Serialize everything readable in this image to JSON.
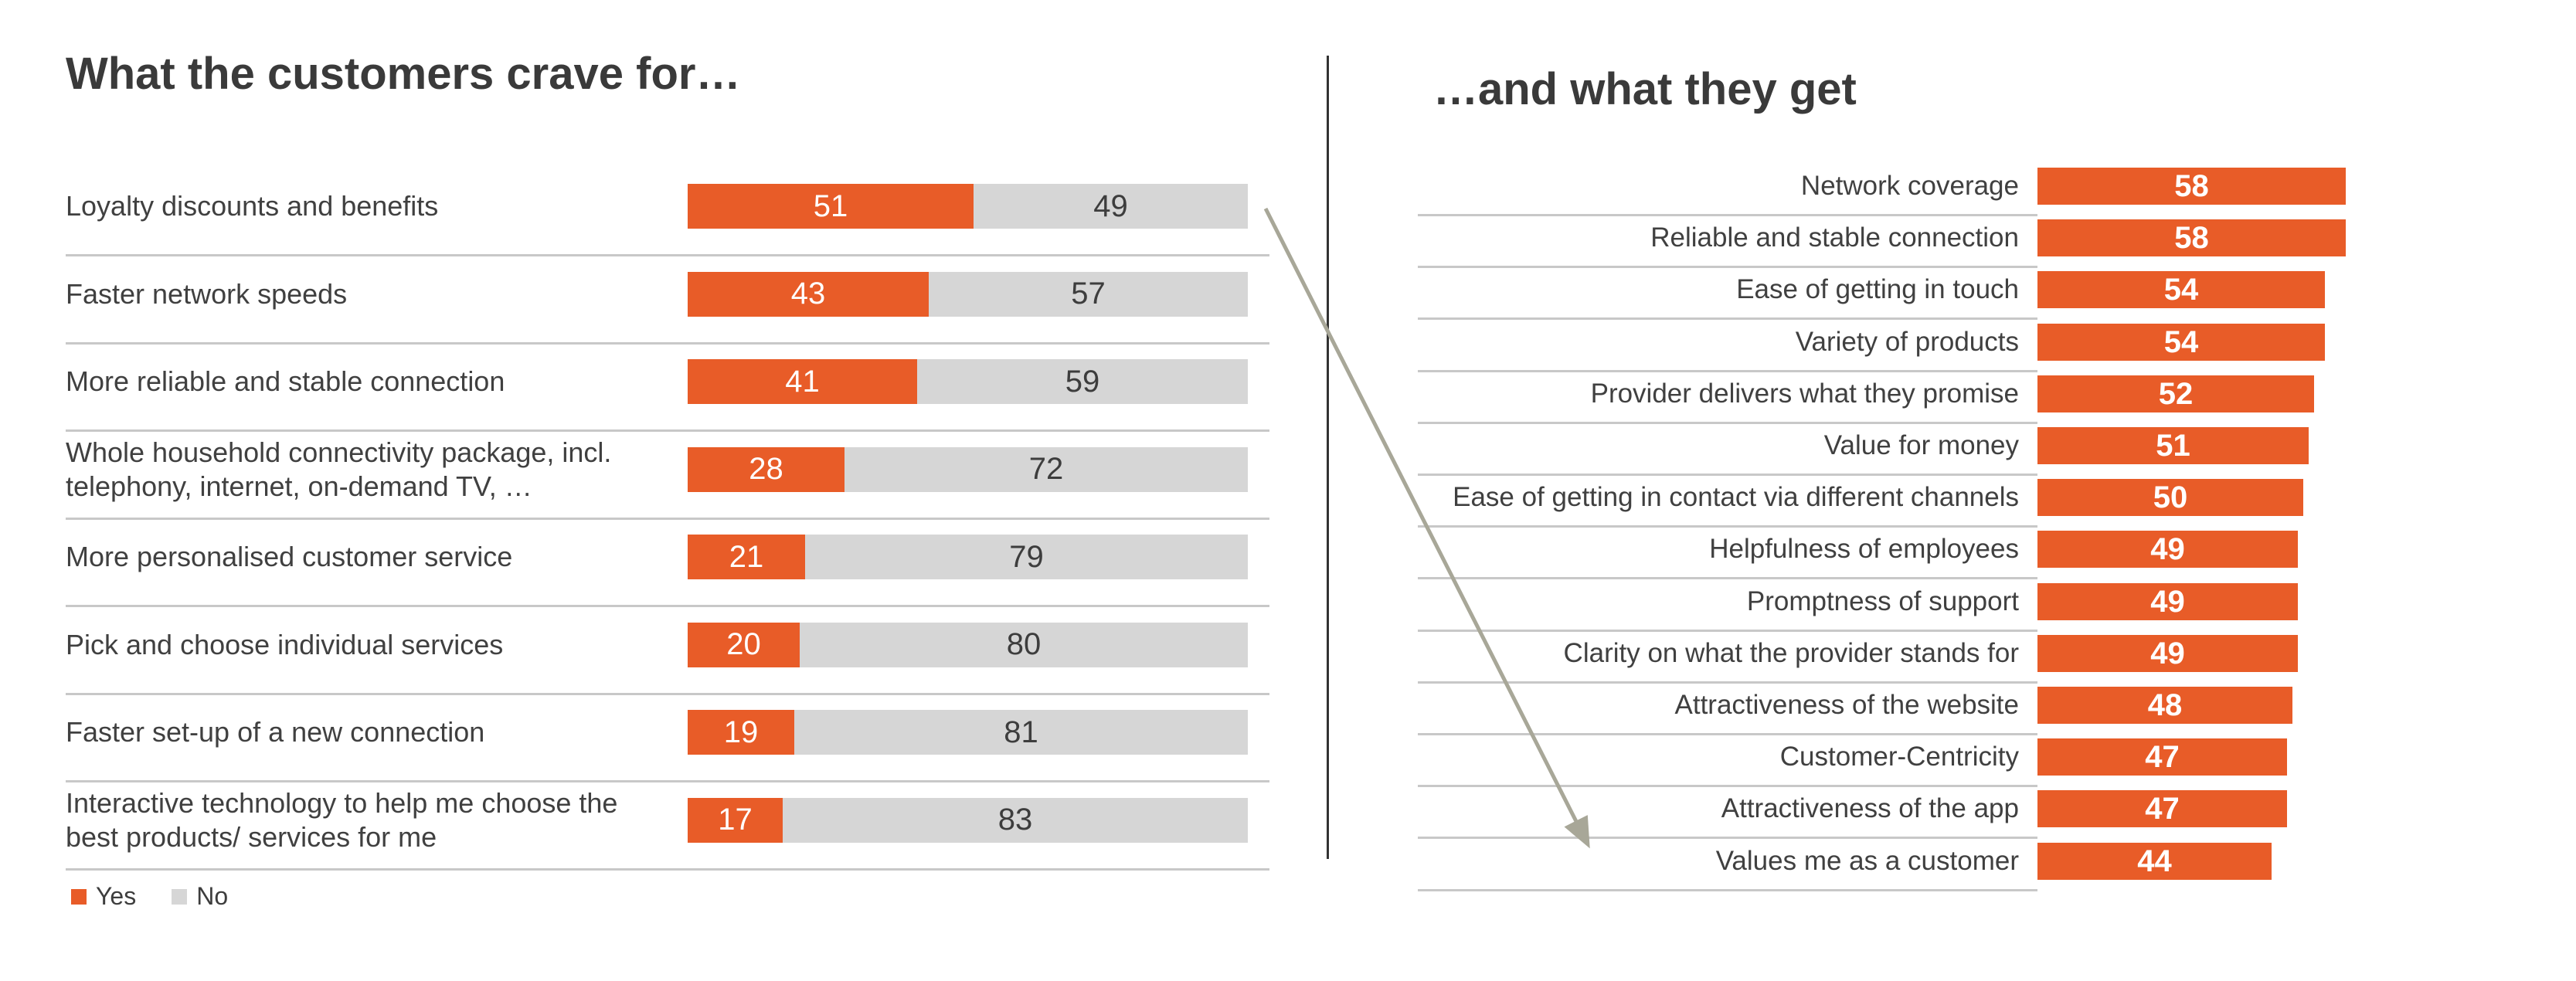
{
  "colors": {
    "accent_orange": "#E85C28",
    "bar_grey": "#D6D6D6",
    "label_text": "#404040",
    "no_value_text": "#3D3D3D",
    "separator_grey": "#C8C8C8",
    "divider_dark": "#333333",
    "arrow_grey": "#A8A798",
    "title_text": "#3A3A3A"
  },
  "chart_data": [
    {
      "type": "bar",
      "subtype": "horizontal-stacked-100pct",
      "title": "What the customers crave for…",
      "categories": [
        "Loyalty discounts and benefits",
        "Faster network speeds",
        "More reliable and stable connection",
        "Whole household connectivity package, incl.\ntelephony, internet, on-demand TV, …",
        "More personalised customer service",
        "Pick and choose individual services",
        "Faster set-up of a new connection",
        "Interactive technology to help me choose the\nbest products/ services for me"
      ],
      "series": [
        {
          "name": "Yes",
          "values": [
            51,
            43,
            41,
            28,
            21,
            20,
            19,
            17
          ]
        },
        {
          "name": "No",
          "values": [
            49,
            57,
            59,
            72,
            79,
            80,
            81,
            83
          ]
        }
      ],
      "xlim": [
        0,
        100
      ],
      "axis_hidden": true,
      "grid": false,
      "data_labels": "inside-center",
      "legend_position": "bottom-left"
    },
    {
      "type": "bar",
      "subtype": "horizontal",
      "title": "…and what they get",
      "categories": [
        "Network coverage",
        "Reliable and stable connection",
        "Ease of getting in touch",
        "Variety of products",
        "Provider delivers what they promise",
        "Value for money",
        "Ease of getting in contact via different channels",
        "Helpfulness of employees",
        "Promptness of support",
        "Clarity on what the provider stands for",
        "Attractiveness of the website",
        "Customer-Centricity",
        "Attractiveness of the app",
        "Values me as a customer"
      ],
      "values": [
        58,
        58,
        54,
        54,
        52,
        51,
        50,
        49,
        49,
        49,
        48,
        47,
        47,
        44
      ],
      "xlim": [
        0,
        100
      ],
      "axis_hidden": true,
      "grid": false,
      "data_labels": "inside-center",
      "legend_position": "none"
    }
  ],
  "annotation": {
    "arrow_meaning": "links 'Loyalty discounts and benefits' (craved) to 'Values me as a customer' (received)"
  }
}
